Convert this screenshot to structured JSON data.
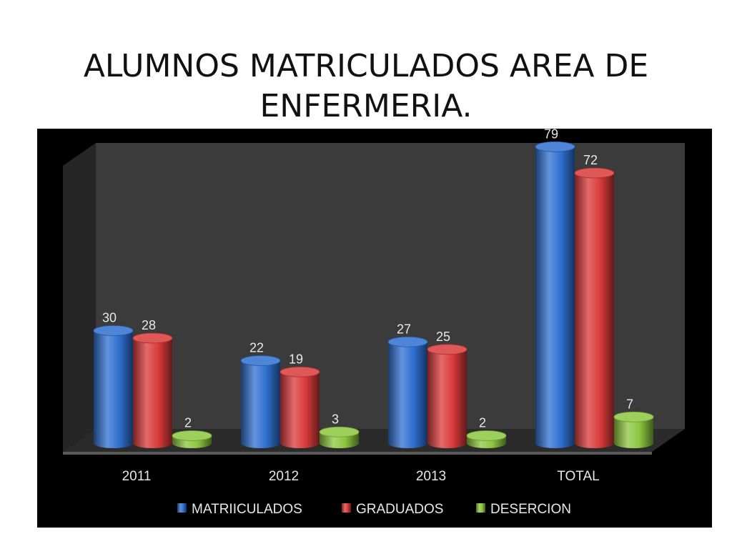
{
  "slide": {
    "title_line1": "ALUMNOS MATRICULADOS AREA DE",
    "title_line2": "ENFERMERIA."
  },
  "chart_data": {
    "type": "bar",
    "style": "3d-cylinder",
    "categories": [
      "2011",
      "2012",
      "2013",
      "TOTAL"
    ],
    "series": [
      {
        "name": "MATRIICULADOS",
        "color": "#2f6fd0",
        "values": [
          30,
          22,
          27,
          79
        ]
      },
      {
        "name": "GRADUADOS",
        "color": "#d93a3a",
        "values": [
          28,
          19,
          25,
          72
        ]
      },
      {
        "name": "DESERCION",
        "color": "#8cc63f",
        "values": [
          2,
          3,
          2,
          7
        ]
      }
    ],
    "ylim": [
      0,
      80
    ],
    "grid": false,
    "legend": "bottom",
    "data_labels": true,
    "background": "#000000",
    "plot_wall": "#3b3b3b",
    "label_color": "#e8e8e8"
  }
}
